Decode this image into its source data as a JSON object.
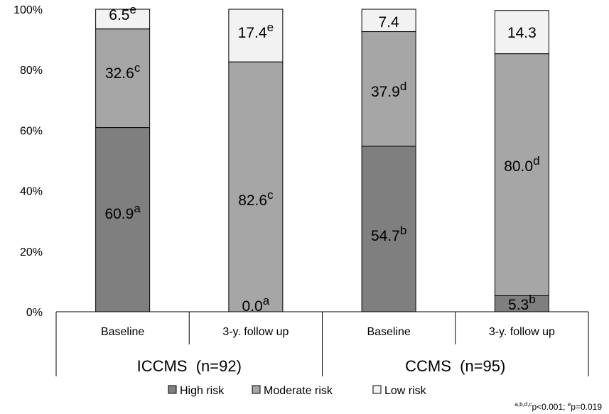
{
  "chart_data": {
    "type": "bar",
    "stacked": true,
    "percent_scale": true,
    "ylim": [
      0,
      100
    ],
    "yticks": [
      "0%",
      "20%",
      "40%",
      "60%",
      "80%",
      "100%"
    ],
    "groups": [
      {
        "label": "ICCMS  (n=92)",
        "categories": [
          "Baseline",
          "3-y. follow up"
        ]
      },
      {
        "label": "CCMS  (n=95)",
        "categories": [
          "Baseline",
          "3-y. follow up"
        ]
      }
    ],
    "categories": [
      "Baseline",
      "3-y. follow up",
      "Baseline",
      "3-y. follow up"
    ],
    "series": [
      {
        "name": "High risk",
        "color": "#7f7f7f",
        "values": [
          60.9,
          0.0,
          54.7,
          5.3
        ],
        "labels": [
          "60.9",
          "0.0",
          "54.7",
          "5.3"
        ],
        "sup": [
          "a",
          "a",
          "b",
          "b"
        ]
      },
      {
        "name": "Moderate risk",
        "color": "#a6a6a6",
        "values": [
          32.6,
          82.6,
          37.9,
          80.0
        ],
        "labels": [
          "32.6",
          "82.6",
          "37.9",
          "80.0"
        ],
        "sup": [
          "c",
          "c",
          "d",
          "d"
        ]
      },
      {
        "name": "Low risk",
        "color": "#f2f2f2",
        "values": [
          6.5,
          17.4,
          7.4,
          14.3
        ],
        "labels": [
          "6.5",
          "17.4",
          "7.4",
          "14.3"
        ],
        "sup": [
          "e",
          "e",
          "",
          ""
        ]
      }
    ],
    "legend_position": "bottom"
  },
  "footnote": {
    "sup1": "a,b,d,c",
    "text1": "p<0.001; ",
    "sup2": "e",
    "text2": "p=0.019"
  }
}
